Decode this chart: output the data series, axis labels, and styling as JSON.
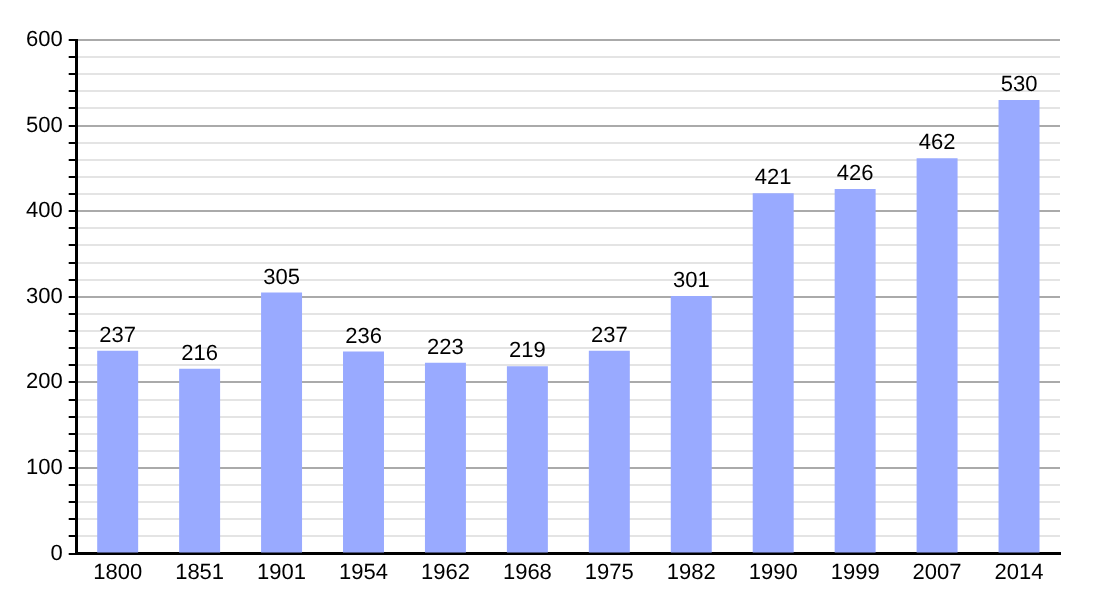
{
  "chart_data": {
    "type": "bar",
    "categories": [
      "1800",
      "1851",
      "1901",
      "1954",
      "1962",
      "1968",
      "1975",
      "1982",
      "1990",
      "1999",
      "2007",
      "2014"
    ],
    "values": [
      237,
      216,
      305,
      236,
      223,
      219,
      237,
      301,
      421,
      426,
      462,
      530
    ],
    "color": "#99aaff",
    "ylim": [
      0,
      600
    ],
    "yticks": [
      0,
      {
        "value": 20,
        "label": null
      },
      {
        "value": 40,
        "label": null
      },
      {
        "value": 60,
        "label": null
      },
      {
        "value": 80,
        "label": null
      },
      100,
      {
        "value": 120,
        "label": null
      },
      {
        "value": 140,
        "label": null
      },
      {
        "value": 160,
        "label": null
      },
      {
        "value": 180,
        "label": null
      },
      200,
      {
        "value": 220,
        "label": null
      },
      {
        "value": 240,
        "label": null
      },
      {
        "value": 260,
        "label": null
      },
      {
        "value": 280,
        "label": null
      },
      300,
      {
        "value": 320,
        "label": null
      },
      {
        "value": 340,
        "label": null
      },
      {
        "value": 360,
        "label": null
      },
      {
        "value": 380,
        "label": null
      },
      400,
      {
        "value": 420,
        "label": null
      },
      {
        "value": 440,
        "label": null
      },
      {
        "value": 460,
        "label": null
      },
      {
        "value": 480,
        "label": null
      },
      500,
      {
        "value": 520,
        "label": null
      },
      {
        "value": 540,
        "label": null
      },
      {
        "value": 560,
        "label": null
      },
      {
        "value": 580,
        "label": null
      },
      600
    ],
    "grid": true,
    "data_labels": true
  }
}
